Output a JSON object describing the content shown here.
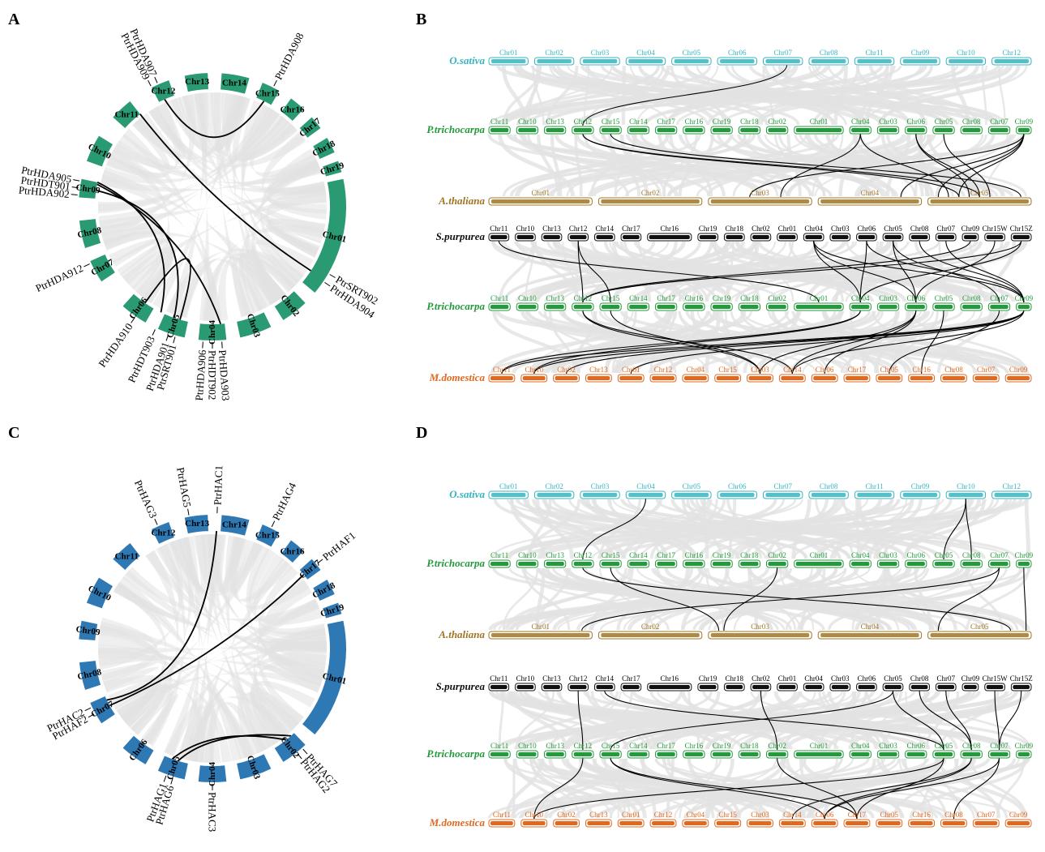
{
  "panels": {
    "A": "A",
    "B": "B",
    "C": "C",
    "D": "D"
  },
  "colors": {
    "circos_A": "#2a9a73",
    "circos_C": "#2e78b4",
    "osativa": "#36b5c0",
    "ptrich": "#239a3b",
    "athal": "#a07524",
    "spurp": "#111111",
    "mdom": "#e06920",
    "link_bg": "#e2e2e2",
    "link_fg": "#000000"
  },
  "circos_chromosomes": [
    "Chr01",
    "Chr02",
    "Chr03",
    "Chr04",
    "Chr05",
    "Chr06",
    "Chr07",
    "Chr08",
    "Chr09",
    "Chr10",
    "Chr11",
    "Chr12",
    "Chr13",
    "Chr14",
    "Chr15",
    "Chr16",
    "Chr17",
    "Chr18",
    "Chr19"
  ],
  "genes_A": [
    "PtrHDA908",
    "PtrHDA909",
    "PtrHDA907",
    "PtrHDA902",
    "PtrHDT901",
    "PtrHDA905",
    "PtrHDA912",
    "PtrHDA910",
    "PtrHDT903",
    "PtrSRT901",
    "PtrHDA901",
    "PtrHDA903",
    "PtrHDT902",
    "PtrHDA906",
    "PtrSRT902",
    "PtrHDA904"
  ],
  "genes_C": [
    "PtrHAG3",
    "PtrHAG5",
    "PtrHAC1",
    "PtrHAG4",
    "PtrHAF1",
    "PtrHAF2",
    "PtrHAC2",
    "PtrHAG6",
    "PtrHAG1",
    "PtrHAC3",
    "PtrHAG7",
    "PtrHAG2"
  ],
  "species": {
    "osativa": "O.sativa",
    "ptrich": "P.trichocarpa",
    "athal": "A.thaliana",
    "spurp": "S.purpurea",
    "mdom": "M.domestica"
  },
  "karyotypes": {
    "osativa": [
      "Chr01",
      "Chr02",
      "Chr03",
      "Chr04",
      "Chr05",
      "Chr06",
      "Chr07",
      "Chr08",
      "Chr11",
      "Chr09",
      "Chr10",
      "Chr12"
    ],
    "ptrich": [
      "Chr11",
      "Chr10",
      "Chr13",
      "Chr12",
      "Chr15",
      "Chr14",
      "Chr17",
      "Chr16",
      "Chr19",
      "Chr18",
      "Chr02",
      "Chr01",
      "Chr04",
      "Chr03",
      "Chr06",
      "Chr05",
      "Chr08",
      "Chr07",
      "Chr09"
    ],
    "athal": [
      "Chr01",
      "Chr02",
      "Chr03",
      "Chr04",
      "Chr05"
    ],
    "spurp": [
      "Chr11",
      "Chr10",
      "Chr13",
      "Chr12",
      "Chr14",
      "Chr17",
      "Chr16",
      "Chr19",
      "Chr18",
      "Chr02",
      "Chr01",
      "Chr04",
      "Chr03",
      "Chr06",
      "Chr05",
      "Chr08",
      "Chr07",
      "Chr09",
      "Chr15W",
      "Chr15Z"
    ],
    "mdom_B": [
      "Chr11",
      "Chr10",
      "Chr02",
      "Chr13",
      "Chr01",
      "Chr12",
      "Chr04",
      "Chr15",
      "Chr03",
      "Chr14",
      "Chr06",
      "Chr17",
      "Chr05",
      "Chr16",
      "Chr08",
      "Chr07",
      "Chr09"
    ],
    "mdom_D": [
      "Chr11",
      "Chr10",
      "Chr02",
      "Chr13",
      "Chr01",
      "Chr12",
      "Chr04",
      "Chr15",
      "Chr03",
      "Chr14",
      "Chr06",
      "Chr17",
      "Chr05",
      "Chr16",
      "Chr08",
      "Chr07",
      "Chr09"
    ]
  }
}
